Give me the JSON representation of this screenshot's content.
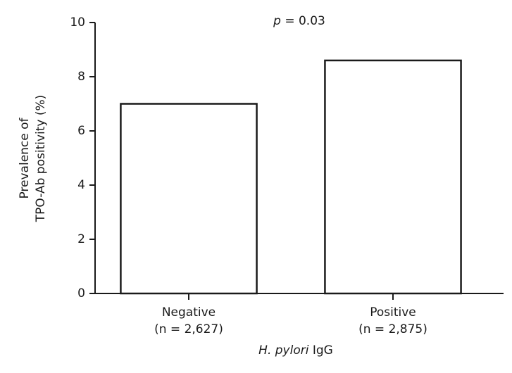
{
  "chart_data": {
    "type": "bar",
    "annotation": "p = 0.03",
    "x_label": "H. pylori IgG",
    "y_label": [
      "Prevalence of",
      "TPO-Ab positivity (%)"
    ],
    "categories": [
      "Negative",
      "Positive"
    ],
    "category_notes": [
      "(n = 2,627)",
      "(n = 2,875)"
    ],
    "values": [
      7.0,
      8.6
    ],
    "color": "#ffffff",
    "ylim": [
      0,
      10
    ],
    "yticks": [
      0,
      2,
      4,
      6,
      8,
      10
    ],
    "grid": false
  }
}
